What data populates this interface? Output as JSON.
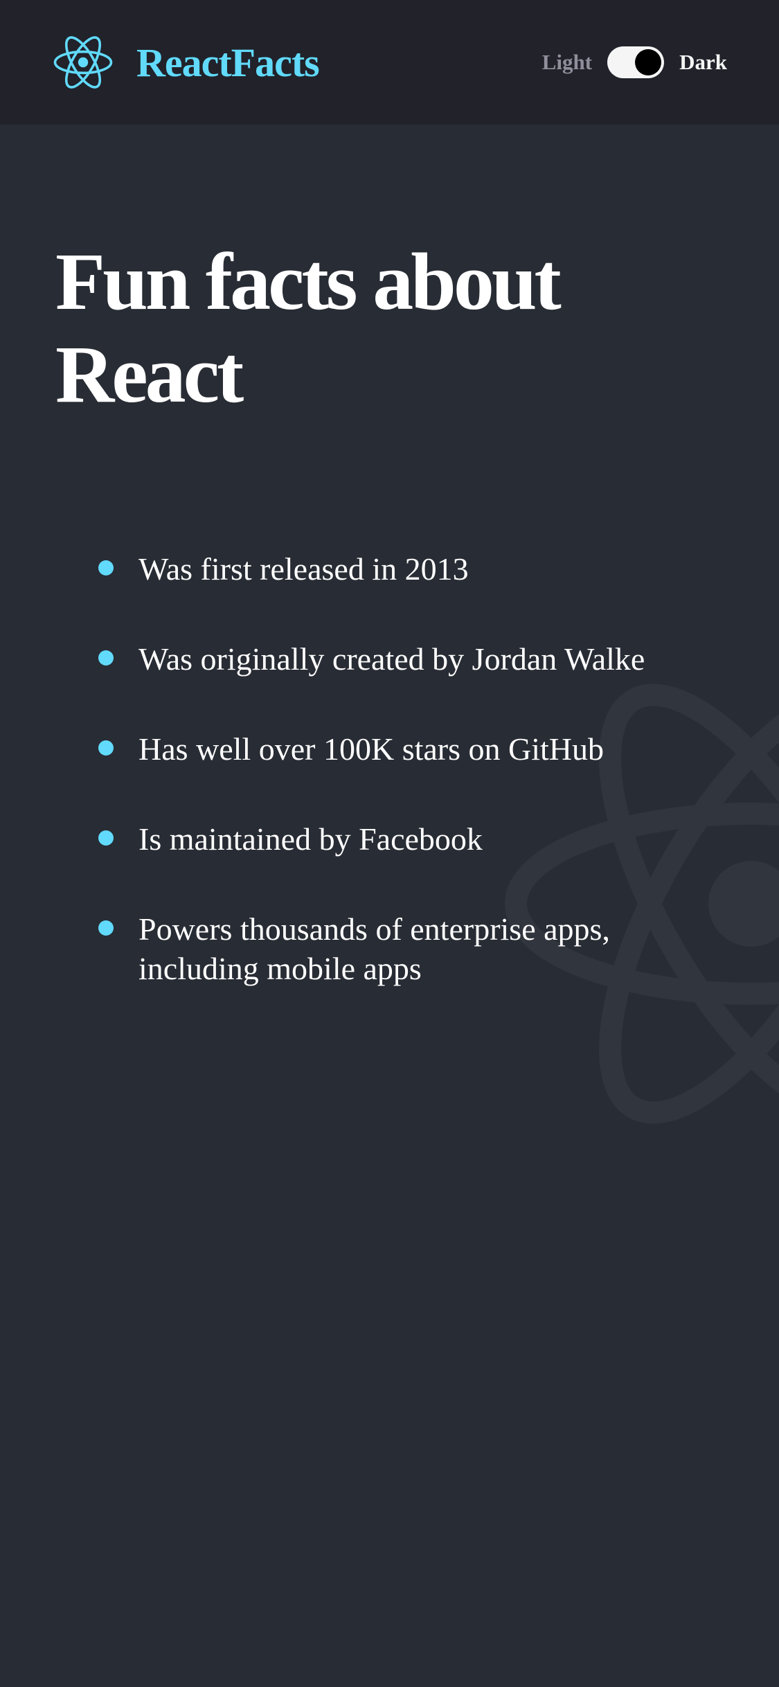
{
  "navbar": {
    "brand": "ReactFacts",
    "logo_icon": "react-atom-icon",
    "toggle": {
      "light_label": "Light",
      "dark_label": "Dark",
      "state": "dark"
    }
  },
  "main": {
    "title": "Fun facts about React",
    "facts": [
      "Was first released in 2013",
      "Was originally created by Jordan Walke",
      "Has well over 100K stars on GitHub",
      "Is maintained by Facebook",
      "Powers thousands of enterprise apps, including mobile apps"
    ]
  },
  "colors": {
    "accent": "#61dafb",
    "navbar_bg": "#21222a",
    "page_bg": "#282c34",
    "muted_text": "#918e9b"
  },
  "background_icon": "react-atom-watermark-icon"
}
